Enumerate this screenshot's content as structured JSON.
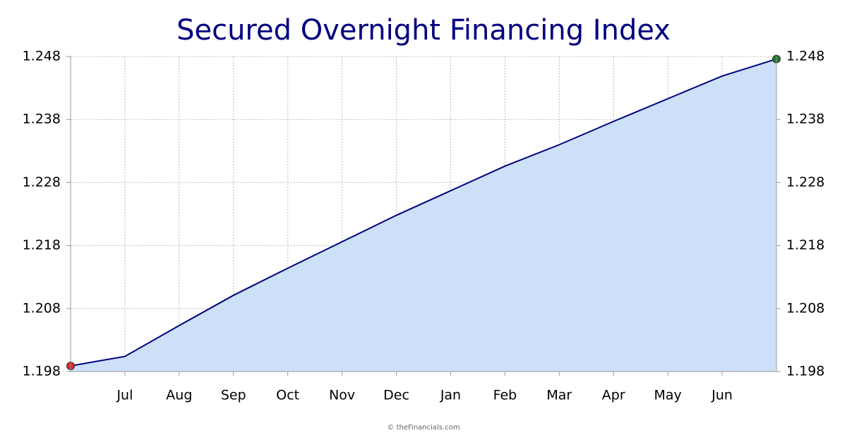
{
  "chart_data": {
    "type": "area",
    "title": "Secured Overnight Financing Index",
    "categories": [
      null,
      "Jul",
      "Aug",
      "Sep",
      "Oct",
      "Nov",
      "Dec",
      "Jan",
      "Feb",
      "Mar",
      "Apr",
      "May",
      "Jun",
      null
    ],
    "values": [
      1.1989,
      1.2004,
      1.2053,
      1.2101,
      1.2144,
      1.2186,
      1.2228,
      1.2267,
      1.2306,
      1.234,
      1.2377,
      1.2413,
      1.2449,
      1.2476
    ],
    "color": "#000080",
    "fill": "#cce0f7",
    "start_color": "#e8202a",
    "end_color": "#1a7a2a",
    "ylim": [
      1.198,
      1.248
    ],
    "yticks": [
      1.198,
      1.208,
      1.218,
      1.228,
      1.238,
      1.248
    ],
    "grid": true,
    "footer": "© theFinancials.com"
  }
}
